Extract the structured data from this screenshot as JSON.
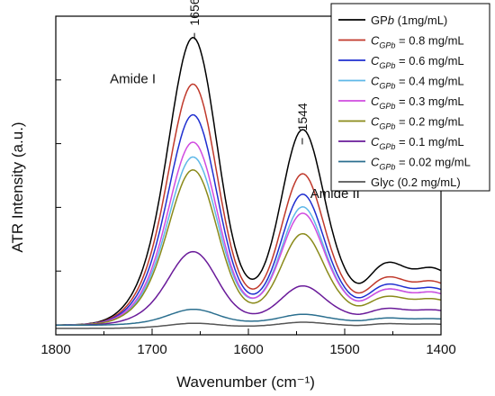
{
  "chart_data": {
    "type": "line",
    "xlabel": "Wavenumber (cm⁻¹)",
    "ylabel": "ATR Intensity (a.u.)",
    "xlim": [
      1800,
      1400
    ],
    "x_reversed": true,
    "xticks": [
      1800,
      1700,
      1600,
      1500,
      1400
    ],
    "ylim": [
      0,
      1
    ],
    "yticks_labeled": false,
    "grid": false,
    "legend_position": "top-right",
    "annotations": [
      {
        "text": "Amide I",
        "x": 1720,
        "y": 0.79
      },
      {
        "text": "Amide II",
        "x": 1510,
        "y": 0.43
      },
      {
        "text": "1656",
        "x": 1656,
        "y": 0.97,
        "rotated": true
      },
      {
        "text": "1544",
        "x": 1544,
        "y": 0.64,
        "rotated": true
      }
    ],
    "series": [
      {
        "name_main": "GP",
        "name_sub": "",
        "name_italic": "b",
        "name_rest": " (1mg/mL)",
        "color": "#000000",
        "baseline": 0.03,
        "a1": 0.94,
        "a2": 0.49,
        "lift": 0.26
      },
      {
        "name_main": "C",
        "name_sub": "GPb",
        "name_italic": "",
        "name_rest": " = 0.8 mg/mL",
        "color": "#c0392b",
        "baseline": 0.03,
        "a1": 0.79,
        "a2": 0.38,
        "lift": 0.2
      },
      {
        "name_main": "C",
        "name_sub": "GPb",
        "name_italic": "",
        "name_rest": " = 0.6 mg/mL",
        "color": "#1f2fd0",
        "baseline": 0.03,
        "a1": 0.69,
        "a2": 0.33,
        "lift": 0.17
      },
      {
        "name_main": "C",
        "name_sub": "GPb",
        "name_italic": "",
        "name_rest": " = 0.4 mg/mL",
        "color": "#5fb8e8",
        "baseline": 0.03,
        "a1": 0.55,
        "a2": 0.3,
        "lift": 0.15
      },
      {
        "name_main": "C",
        "name_sub": "GPb",
        "name_italic": "",
        "name_rest": " = 0.3 mg/mL",
        "color": "#d14ce0",
        "baseline": 0.03,
        "a1": 0.6,
        "a2": 0.28,
        "lift": 0.15
      },
      {
        "name_main": "C",
        "name_sub": "GPb",
        "name_italic": "",
        "name_rest": " = 0.2 mg/mL",
        "color": "#8a8a1a",
        "baseline": 0.03,
        "a1": 0.51,
        "a2": 0.23,
        "lift": 0.12
      },
      {
        "name_main": "C",
        "name_sub": "GPb",
        "name_italic": "",
        "name_rest": " = 0.1 mg/mL",
        "color": "#6a1b9a",
        "baseline": 0.03,
        "a1": 0.24,
        "a2": 0.09,
        "lift": 0.07
      },
      {
        "name_main": "C",
        "name_sub": "GPb",
        "name_italic": "",
        "name_rest": " = 0.02 mg/mL",
        "color": "#2b6f8f",
        "baseline": 0.03,
        "a1": 0.05,
        "a2": 0.02,
        "lift": 0.03
      },
      {
        "name_main": "Glyc (0.2 mg/mL)",
        "name_sub": "",
        "name_italic": "",
        "name_rest": "",
        "color": "#555555",
        "baseline": 0.02,
        "a1": 0.015,
        "a2": 0.01,
        "lift": 0.02
      }
    ]
  }
}
